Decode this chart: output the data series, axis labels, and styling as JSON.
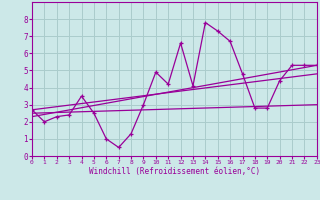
{
  "xlabel": "Windchill (Refroidissement éolien,°C)",
  "bg_color": "#cce8e8",
  "line_color": "#990099",
  "grid_color": "#aacccc",
  "xlim": [
    0,
    23
  ],
  "ylim": [
    0,
    9
  ],
  "xticks": [
    0,
    1,
    2,
    3,
    4,
    5,
    6,
    7,
    8,
    9,
    10,
    11,
    12,
    13,
    14,
    15,
    16,
    17,
    18,
    19,
    20,
    21,
    22,
    23
  ],
  "yticks": [
    0,
    1,
    2,
    3,
    4,
    5,
    6,
    7,
    8
  ],
  "line1_x": [
    0,
    1,
    2,
    3,
    4,
    5,
    6,
    7,
    8,
    9,
    10,
    11,
    12,
    13,
    14,
    15,
    16,
    17,
    18,
    19,
    20,
    21,
    22,
    23
  ],
  "line1_y": [
    2.7,
    2.0,
    2.3,
    2.4,
    3.5,
    2.5,
    1.0,
    0.5,
    1.3,
    3.0,
    4.9,
    4.2,
    6.6,
    4.1,
    7.8,
    7.3,
    6.7,
    4.8,
    2.8,
    2.8,
    4.4,
    5.3,
    5.3,
    5.3
  ],
  "line2_x": [
    0,
    23
  ],
  "line2_y": [
    2.5,
    3.0
  ],
  "line3_x": [
    0,
    23
  ],
  "line3_y": [
    2.7,
    4.8
  ],
  "line4_x": [
    0,
    23
  ],
  "line4_y": [
    2.3,
    5.3
  ]
}
